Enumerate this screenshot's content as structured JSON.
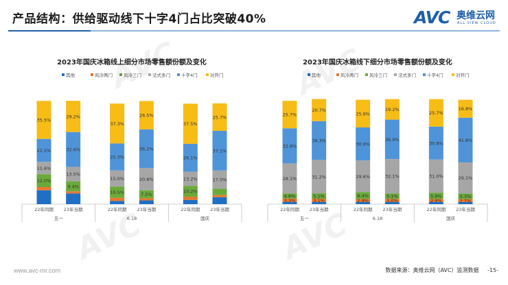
{
  "header": {
    "title": "产品结构：供给驱动线下十字4门占比突破40%"
  },
  "logo": {
    "mark": "AVC",
    "cn": "奥维云网",
    "en": "ALL VIEW CLOUD"
  },
  "footer": {
    "website": "www.avc-mr.com",
    "source": "数据来源：奥维云网（AVC）监测数据",
    "page": "-15-"
  },
  "colors": {
    "其他": "#1f6fc5",
    "风冷两门": "#e8772e",
    "风冷三门": "#6aaa3a",
    "法式多门": "#a6a6a6",
    "十字4门": "#4f94d8",
    "对开门": "#f7bc16"
  },
  "chart_data": [
    {
      "type": "bar",
      "stacked": true,
      "percent": true,
      "title": "2023年国庆冰箱线上细分市场零售额份额及变化",
      "legend": [
        "其他",
        "风冷两门",
        "风冷三门",
        "法式多门",
        "十字4门",
        "对开门"
      ],
      "categories": [
        {
          "label": "22年同期",
          "group": "五一"
        },
        {
          "label": "23年当期",
          "group": "五一"
        },
        {
          "label": "22年同期",
          "group": "6.18"
        },
        {
          "label": "23年当期",
          "group": "6.18"
        },
        {
          "label": "22年同期",
          "group": "国庆"
        },
        {
          "label": "23年当期",
          "group": "国庆"
        }
      ],
      "groups": [
        "五一",
        "6.18",
        "国庆"
      ],
      "series": [
        {
          "name": "其他",
          "values": [
            13.0,
            10.0,
            3.0,
            3.5,
            4.0,
            6.5
          ]
        },
        {
          "name": "风冷两门",
          "values": [
            3.0,
            2.0,
            3.0,
            2.0,
            3.0,
            2.0
          ]
        },
        {
          "name": "风冷三门",
          "values": [
            12.0,
            9.4,
            10.5,
            7.5,
            10.2,
            6.0
          ]
        },
        {
          "name": "法式多门",
          "values": [
            11.6,
            13.5,
            15.0,
            20.8,
            13.2,
            17.0
          ]
        },
        {
          "name": "十字4门",
          "values": [
            21.5,
            32.6,
            25.3,
            36.2,
            26.1,
            37.1
          ]
        },
        {
          "name": "对开门",
          "values": [
            35.5,
            29.2,
            37.3,
            26.5,
            37.5,
            25.7
          ]
        }
      ],
      "labels": [
        [
          "",
          "",
          "",
          "",
          "",
          ""
        ],
        [
          "",
          "",
          "",
          "",
          "",
          ""
        ],
        [
          "12.0%",
          "9.4%",
          "10.5%",
          "7.5%",
          "10.2%",
          ""
        ],
        [
          "11.6%",
          "13.5%",
          "15.0%",
          "20.8%",
          "13.2%",
          "17.0%"
        ],
        [
          "21.5%",
          "32.6%",
          "25.3%",
          "36.2%",
          "26.1%",
          "37.1%"
        ],
        [
          "35.5%",
          "29.2%",
          "37.3%",
          "26.5%",
          "37.5%",
          "25.7%"
        ]
      ]
    },
    {
      "type": "bar",
      "stacked": true,
      "percent": true,
      "title": "2023年国庆冰箱线下细分市场零售额份额及变化",
      "legend": [
        "其他",
        "风冷两门",
        "风冷三门",
        "法式多门",
        "十字4门",
        "对开门"
      ],
      "categories": [
        {
          "label": "22年同期",
          "group": "五一"
        },
        {
          "label": "23年当期",
          "group": "五一"
        },
        {
          "label": "22年同期",
          "group": "6.18"
        },
        {
          "label": "23年当期",
          "group": "6.18"
        },
        {
          "label": "22年同期",
          "group": "国庆"
        },
        {
          "label": "23年当期",
          "group": "国庆"
        }
      ],
      "groups": [
        "五一",
        "6.18",
        "国庆"
      ],
      "series": [
        {
          "name": "其他",
          "values": [
            2.0,
            2.0,
            2.0,
            2.0,
            2.0,
            2.0
          ]
        },
        {
          "name": "风冷两门",
          "values": [
            3.3,
            3.1,
            2.9,
            3.0,
            2.9,
            2.7
          ]
        },
        {
          "name": "风冷三门",
          "values": [
            4.8,
            5.1,
            6.4,
            5.1,
            5.9,
            5.3
          ]
        },
        {
          "name": "法式多门",
          "values": [
            28.1,
            31.2,
            29.6,
            32.1,
            31.0,
            29.1
          ]
        },
        {
          "name": "十字4门",
          "values": [
            32.8,
            36.3,
            30.9,
            36.9,
            30.8,
            41.8
          ]
        },
        {
          "name": "对开门",
          "values": [
            25.7,
            20.7,
            25.9,
            19.2,
            25.7,
            16.8
          ]
        }
      ],
      "labels": [
        [
          "",
          "",
          "",
          "",
          "",
          ""
        ],
        [
          "3.3%",
          "3.1%",
          "2.9%",
          "3.0%",
          "2.9%",
          "2.7%"
        ],
        [
          "4.8%",
          "5.1%",
          "6.4%",
          "5.1%",
          "5.9%",
          "5.3%"
        ],
        [
          "28.1%",
          "31.2%",
          "29.6%",
          "32.1%",
          "31.0%",
          "29.1%"
        ],
        [
          "32.8%",
          "36.3%",
          "30.9%",
          "36.9%",
          "30.8%",
          "41.8%"
        ],
        [
          "25.7%",
          "20.7%",
          "25.9%",
          "19.2%",
          "25.7%",
          "16.8%"
        ]
      ]
    }
  ]
}
